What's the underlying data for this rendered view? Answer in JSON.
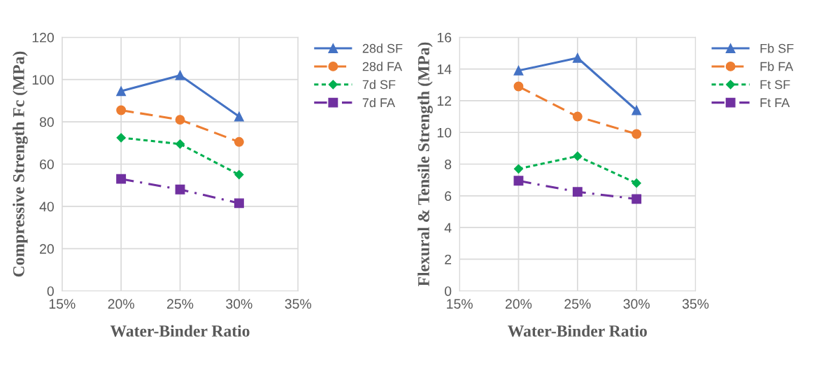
{
  "chart_data": [
    {
      "type": "line",
      "xlabel": "Water-Binder Ratio",
      "ylabel": "Compressive Strength Fc (MPa)",
      "x": [
        0.2,
        0.25,
        0.3
      ],
      "xlim": [
        0.15,
        0.35
      ],
      "xticks": [
        {
          "value": 0.15,
          "label": "15%"
        },
        {
          "value": 0.2,
          "label": "20%"
        },
        {
          "value": 0.25,
          "label": "25%"
        },
        {
          "value": 0.3,
          "label": "30%"
        },
        {
          "value": 0.35,
          "label": "35%"
        }
      ],
      "ylim": [
        0,
        120
      ],
      "yticks": [
        0,
        20,
        40,
        60,
        80,
        100,
        120
      ],
      "grid": true,
      "legend": "top right",
      "series": [
        {
          "name": "28d SF",
          "color": "#4472c4",
          "marker": "triangle",
          "line_style": "solid",
          "values": [
            94.5,
            102,
            82.5
          ]
        },
        {
          "name": "28d FA",
          "color": "#ed7d31",
          "marker": "circle",
          "line_style": "dashed",
          "values": [
            85.5,
            81,
            70.5
          ]
        },
        {
          "name": "7d SF",
          "color": "#00b050",
          "marker": "diamond",
          "line_style": "dotted",
          "values": [
            72.5,
            69.5,
            55
          ]
        },
        {
          "name": "7d FA",
          "color": "#7030a0",
          "marker": "square",
          "line_style": "dashdot",
          "values": [
            53,
            48,
            41.5
          ]
        }
      ]
    },
    {
      "type": "line",
      "xlabel": "Water-Binder Ratio",
      "ylabel": "Flexural & Tensile Strength (MPa)",
      "x": [
        0.2,
        0.25,
        0.3
      ],
      "xlim": [
        0.15,
        0.35
      ],
      "xticks": [
        {
          "value": 0.15,
          "label": "15%"
        },
        {
          "value": 0.2,
          "label": "20%"
        },
        {
          "value": 0.25,
          "label": "25%"
        },
        {
          "value": 0.3,
          "label": "30%"
        },
        {
          "value": 0.35,
          "label": "35%"
        }
      ],
      "ylim": [
        0,
        16
      ],
      "yticks": [
        0,
        2,
        4,
        6,
        8,
        10,
        12,
        14,
        16
      ],
      "grid": true,
      "legend": "top right",
      "series": [
        {
          "name": "Fb SF",
          "color": "#4472c4",
          "marker": "triangle",
          "line_style": "solid",
          "values": [
            13.9,
            14.7,
            11.4
          ]
        },
        {
          "name": "Fb FA",
          "color": "#ed7d31",
          "marker": "circle",
          "line_style": "dashed",
          "values": [
            12.9,
            11.0,
            9.9
          ]
        },
        {
          "name": "Ft SF",
          "color": "#00b050",
          "marker": "diamond",
          "line_style": "dotted",
          "values": [
            7.7,
            8.5,
            6.8
          ]
        },
        {
          "name": "Ft FA",
          "color": "#7030a0",
          "marker": "square",
          "line_style": "dashdot",
          "values": [
            6.95,
            6.25,
            5.8
          ]
        }
      ]
    }
  ]
}
